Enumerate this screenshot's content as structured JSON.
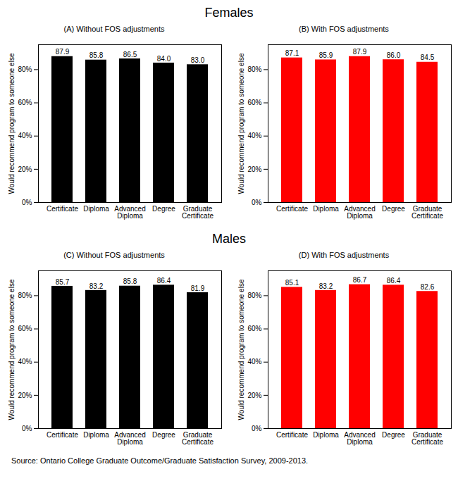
{
  "chart_data": [
    {
      "type": "bar",
      "group": "Females",
      "title": "(A) Without FOS adjustments",
      "ylabel": "Would recommend program to someone else",
      "categories": [
        "Certificate",
        "Diploma",
        "Advanced Diploma",
        "Degree",
        "Graduate Certificate"
      ],
      "values": [
        87.9,
        85.8,
        86.5,
        84.0,
        83.0
      ],
      "value_labels": [
        "87.9",
        "85.8",
        "86.5",
        "84.0",
        "83.0"
      ],
      "color": "#000000",
      "data_labels": true,
      "grid": false,
      "ylim": [
        0,
        95
      ],
      "yticks": [
        {
          "value": 0,
          "label": "0%"
        },
        {
          "value": 20,
          "label": "20%"
        },
        {
          "value": 40,
          "label": "40%"
        },
        {
          "value": 60,
          "label": "60%"
        },
        {
          "value": 80,
          "label": "80%"
        }
      ]
    },
    {
      "type": "bar",
      "group": "Females",
      "title": "(B) With FOS adjustments",
      "ylabel": "Would recommend program to someone else",
      "categories": [
        "Certificate",
        "Diploma",
        "Advanced Diploma",
        "Degree",
        "Graduate Certificate"
      ],
      "values": [
        87.1,
        85.9,
        87.9,
        86.0,
        84.5
      ],
      "value_labels": [
        "87.1",
        "85.9",
        "87.9",
        "86.0",
        "84.5"
      ],
      "color": "#ff0000",
      "data_labels": true,
      "grid": false,
      "ylim": [
        0,
        95
      ],
      "yticks": [
        {
          "value": 0,
          "label": "0%"
        },
        {
          "value": 20,
          "label": "20%"
        },
        {
          "value": 40,
          "label": "40%"
        },
        {
          "value": 60,
          "label": "60%"
        },
        {
          "value": 80,
          "label": "80%"
        }
      ]
    },
    {
      "type": "bar",
      "group": "Males",
      "title": "(C) Without FOS adjustments",
      "ylabel": "Would recommend program to someone else",
      "categories": [
        "Certificate",
        "Diploma",
        "Advanced Diploma",
        "Degree",
        "Graduate Certificate"
      ],
      "values": [
        85.7,
        83.2,
        85.8,
        86.4,
        81.9
      ],
      "value_labels": [
        "85.7",
        "83.2",
        "85.8",
        "86.4",
        "81.9"
      ],
      "color": "#000000",
      "data_labels": true,
      "grid": false,
      "ylim": [
        0,
        95
      ],
      "yticks": [
        {
          "value": 0,
          "label": "0%"
        },
        {
          "value": 20,
          "label": "20%"
        },
        {
          "value": 40,
          "label": "40%"
        },
        {
          "value": 60,
          "label": "60%"
        },
        {
          "value": 80,
          "label": "80%"
        }
      ]
    },
    {
      "type": "bar",
      "group": "Males",
      "title": "(D) With FOS adjustments",
      "ylabel": "Would recommend program to someone else",
      "categories": [
        "Certificate",
        "Diploma",
        "Advanced Diploma",
        "Degree",
        "Graduate Certificate"
      ],
      "values": [
        85.1,
        83.2,
        86.7,
        86.4,
        82.6
      ],
      "value_labels": [
        "85.1",
        "83.2",
        "86.7",
        "86.4",
        "82.6"
      ],
      "color": "#ff0000",
      "data_labels": true,
      "grid": false,
      "ylim": [
        0,
        95
      ],
      "yticks": [
        {
          "value": 0,
          "label": "0%"
        },
        {
          "value": 20,
          "label": "20%"
        },
        {
          "value": 40,
          "label": "40%"
        },
        {
          "value": 60,
          "label": "60%"
        },
        {
          "value": 80,
          "label": "80%"
        }
      ]
    }
  ],
  "caption": "Source: Ontario College Graduate Outcome/Graduate Satisfaction Survey, 2009-2013."
}
